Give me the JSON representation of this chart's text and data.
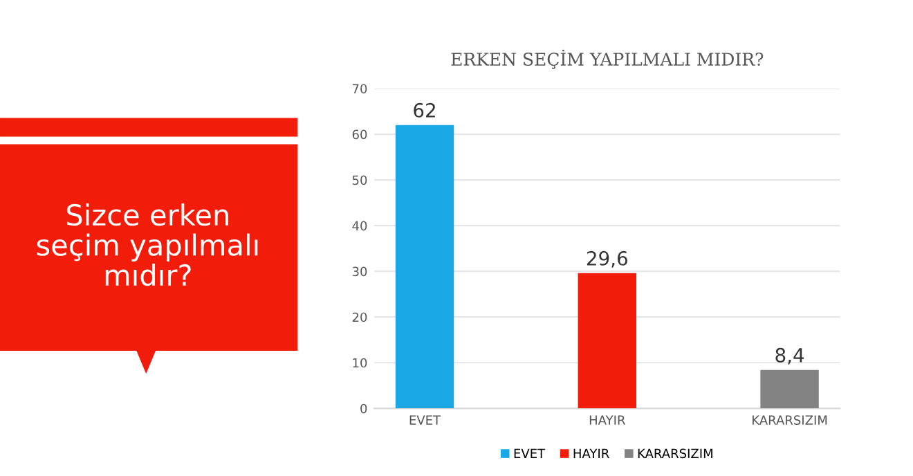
{
  "chart_data": {
    "type": "bar",
    "title": "ERKEN SEÇİM YAPILMALI MIDIR?",
    "categories": [
      "EVET",
      "HAYIR",
      "KARARSIZIM"
    ],
    "series": [
      {
        "name": "EVET",
        "color": "#1aa7e6",
        "values": [
          62,
          null,
          null
        ],
        "value_labels": [
          "62",
          null,
          null
        ]
      },
      {
        "name": "HAYIR",
        "color": "#f21c0a",
        "values": [
          null,
          29.6,
          null
        ],
        "value_labels": [
          null,
          "29,6",
          null
        ]
      },
      {
        "name": "KARARSIZIM",
        "color": "#838383",
        "values": [
          null,
          null,
          8.4
        ],
        "value_labels": [
          null,
          null,
          "8,4"
        ]
      }
    ],
    "ylim": [
      0,
      70
    ],
    "yticks": [
      0,
      10,
      20,
      30,
      40,
      50,
      60,
      70
    ],
    "grid": "y",
    "legend": "bottom",
    "annotations": [
      "Sizce erken\nseçim yapılmalı\nmıdır?"
    ]
  }
}
